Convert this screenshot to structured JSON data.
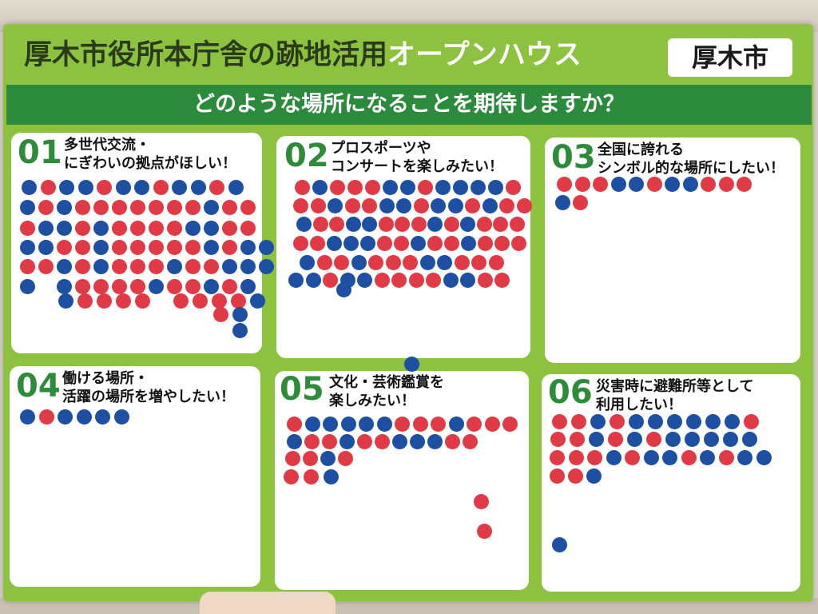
{
  "poster": {
    "title_main": "厚木市役所本庁舎の跡地活用",
    "title_accent": "オープンハウス",
    "city_badge": "厚木市",
    "question": "どのような場所になることを期待しますか？"
  },
  "colors": {
    "poster_green": "#8cc23f",
    "bar_green": "#2c8a3c",
    "number_green": "#2e8b3a",
    "sticker_red": "#e03a47",
    "sticker_blue": "#1d4fa3"
  },
  "panels": [
    {
      "num": "01",
      "line1": "多世代交流・",
      "line2": "にぎわいの拠点がほしい！"
    },
    {
      "num": "02",
      "line1": "プロスポーツや",
      "line2": "コンサートを楽しみたい！"
    },
    {
      "num": "03",
      "line1": "全国に誇れる",
      "line2": "シンボル的な場所にしたい！"
    },
    {
      "num": "04",
      "line1": "働ける場所・",
      "line2": "活躍の場所を増やしたい！"
    },
    {
      "num": "05",
      "line1": "文化・芸術鑑賞を",
      "line2": "楽しみたい！"
    },
    {
      "num": "06",
      "line1": "災害時に避難所等として",
      "line2": "利用したい！"
    }
  ]
}
